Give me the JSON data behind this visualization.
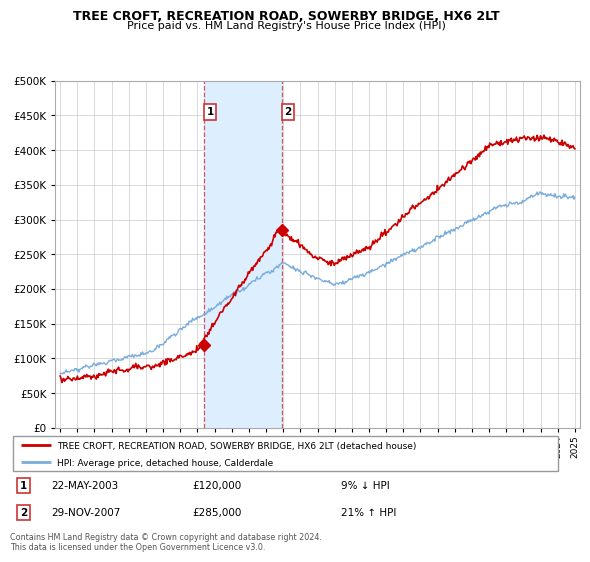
{
  "title": "TREE CROFT, RECREATION ROAD, SOWERBY BRIDGE, HX6 2LT",
  "subtitle": "Price paid vs. HM Land Registry's House Price Index (HPI)",
  "legend_line1": "TREE CROFT, RECREATION ROAD, SOWERBY BRIDGE, HX6 2LT (detached house)",
  "legend_line2": "HPI: Average price, detached house, Calderdale",
  "transaction1_date": "22-MAY-2003",
  "transaction1_price": "£120,000",
  "transaction1_hpi": "9% ↓ HPI",
  "transaction2_date": "29-NOV-2007",
  "transaction2_price": "£285,000",
  "transaction2_hpi": "21% ↑ HPI",
  "footer": "Contains HM Land Registry data © Crown copyright and database right 2024.\nThis data is licensed under the Open Government Licence v3.0.",
  "red_color": "#cc0000",
  "blue_color": "#7aaddb",
  "highlight_color": "#ddeeff",
  "highlight_border": "#cc3333",
  "ylim": [
    0,
    500000
  ],
  "yticks": [
    0,
    50000,
    100000,
    150000,
    200000,
    250000,
    300000,
    350000,
    400000,
    450000,
    500000
  ],
  "start_year": 1995,
  "end_year": 2025
}
